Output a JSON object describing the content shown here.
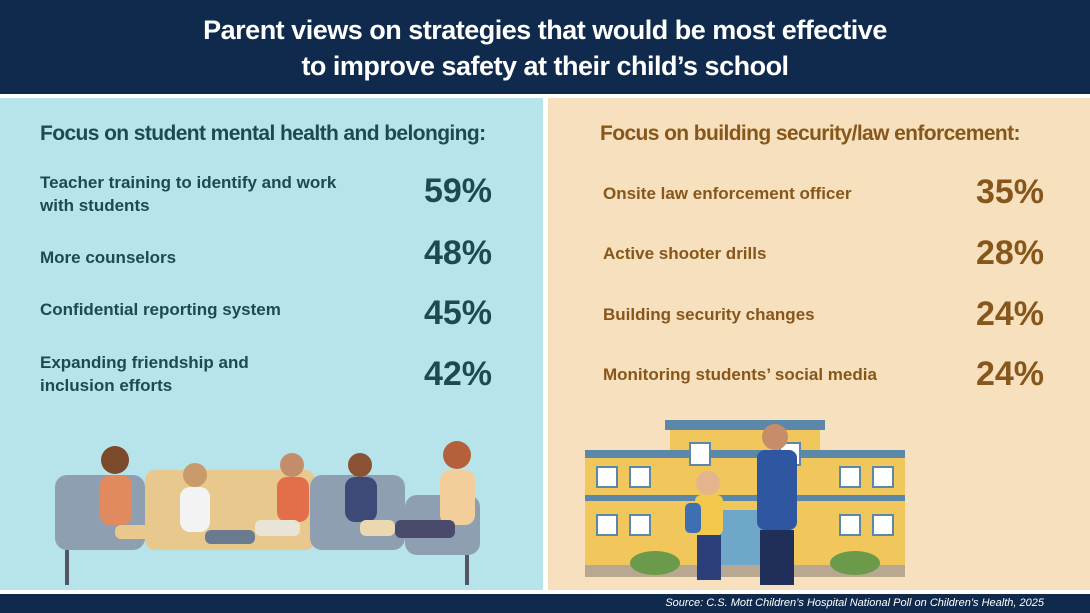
{
  "header": {
    "title": "Parent views on strategies that would be most effective to improve safety at their child’s school"
  },
  "left": {
    "heading": "Focus on student mental health and belonging:",
    "items": [
      {
        "label": "Teacher training to identify and work with students",
        "value": "59%"
      },
      {
        "label": "More counselors",
        "value": "48%"
      },
      {
        "label": "Confidential reporting system",
        "value": "45%"
      },
      {
        "label": "Expanding friendship and inclusion efforts",
        "value": "42%"
      }
    ]
  },
  "right": {
    "heading": "Focus on building security/law enforcement:",
    "items": [
      {
        "label": "Onsite law enforcement officer",
        "value": "35%"
      },
      {
        "label": "Active shooter drills",
        "value": "28%"
      },
      {
        "label": "Building security changes",
        "value": "24%"
      },
      {
        "label": "Monitoring students’ social media",
        "value": "24%"
      }
    ]
  },
  "footer": {
    "source": "Source: C.S. Mott Children’s Hospital National Poll on Children’s Health, 2025"
  }
}
